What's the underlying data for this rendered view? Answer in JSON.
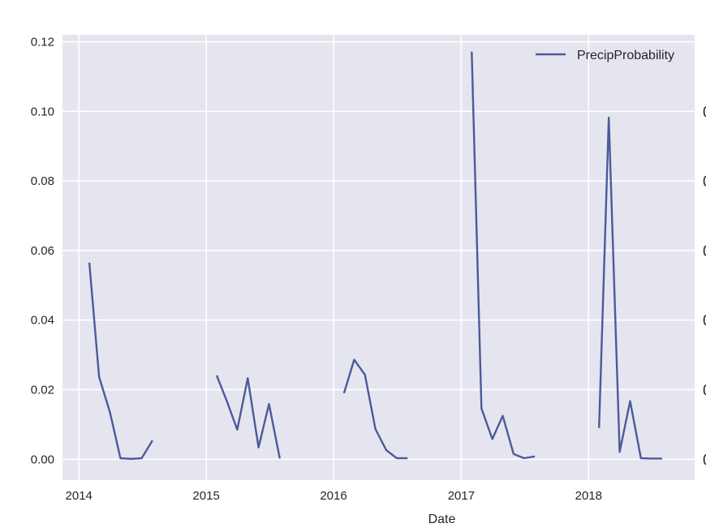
{
  "chart_data": {
    "type": "line",
    "title": "",
    "xlabel": "Date",
    "ylabel": "",
    "ylim": [
      -0.006,
      0.122
    ],
    "xlim": [
      "2013-11-15",
      "2018-11-01"
    ],
    "grid": true,
    "legend_placement": "top-right",
    "colors": {
      "line": "#4c5a9b",
      "plot_bg": "#e5e5ef",
      "grid": "#ffffff"
    },
    "x_ticks": [
      "2014",
      "2015",
      "2016",
      "2017",
      "2018"
    ],
    "y_ticks": [
      "0.00",
      "0.02",
      "0.04",
      "0.06",
      "0.08",
      "0.10",
      "0.12"
    ],
    "right_axis_partial_labels": [
      "0",
      "0",
      "0",
      "0",
      "0",
      "0"
    ],
    "series": [
      {
        "name": "PrecipProbability",
        "segments": [
          [
            [
              "2014-01-31",
              0.0565
            ],
            [
              "2014-02-28",
              0.0237
            ],
            [
              "2014-03-31",
              0.0135
            ],
            [
              "2014-04-30",
              0.0003
            ],
            [
              "2014-05-31",
              0.0001
            ],
            [
              "2014-06-30",
              0.0003
            ],
            [
              "2014-07-31",
              0.0054
            ]
          ],
          [
            [
              "2015-01-31",
              0.0241
            ],
            [
              "2015-02-28",
              0.017
            ],
            [
              "2015-03-31",
              0.0085
            ],
            [
              "2015-04-30",
              0.0233
            ],
            [
              "2015-05-31",
              0.0034
            ],
            [
              "2015-06-30",
              0.0159
            ],
            [
              "2015-07-31",
              0.0002
            ]
          ],
          [
            [
              "2016-01-31",
              0.019
            ],
            [
              "2016-02-29",
              0.0286
            ],
            [
              "2016-03-31",
              0.0243
            ],
            [
              "2016-04-30",
              0.0087
            ],
            [
              "2016-05-31",
              0.0026
            ],
            [
              "2016-06-30",
              0.0003
            ],
            [
              "2016-07-31",
              0.0003
            ]
          ],
          [
            [
              "2017-01-31",
              0.1172
            ],
            [
              "2017-02-28",
              0.0146
            ],
            [
              "2017-03-31",
              0.0058
            ],
            [
              "2017-04-30",
              0.0125
            ],
            [
              "2017-05-31",
              0.0015
            ],
            [
              "2017-06-30",
              0.0003
            ],
            [
              "2017-07-31",
              0.0008
            ]
          ],
          [
            [
              "2018-01-31",
              0.009
            ],
            [
              "2018-02-28",
              0.0982
            ],
            [
              "2018-03-31",
              0.0021
            ],
            [
              "2018-04-30",
              0.0167
            ],
            [
              "2018-05-31",
              0.0003
            ],
            [
              "2018-06-30",
              0.0002
            ],
            [
              "2018-07-31",
              0.0002
            ]
          ]
        ]
      }
    ]
  }
}
